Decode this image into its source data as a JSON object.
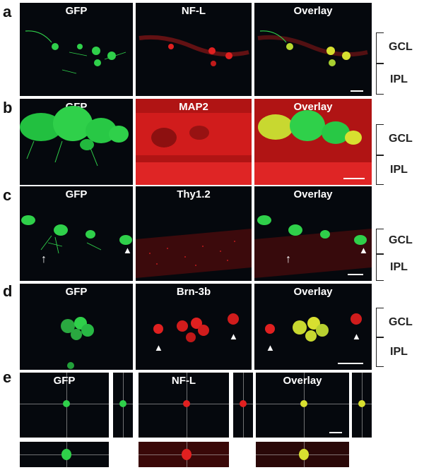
{
  "rows": [
    {
      "letter": "a",
      "labels": [
        "GFP",
        "NF-L",
        "Overlay"
      ]
    },
    {
      "letter": "b",
      "labels": [
        "GFP",
        "MAP2",
        "Overlay"
      ]
    },
    {
      "letter": "c",
      "labels": [
        "GFP",
        "Thy1.2",
        "Overlay"
      ]
    },
    {
      "letter": "d",
      "labels": [
        "GFP",
        "Brn-3b",
        "Overlay"
      ]
    },
    {
      "letter": "e",
      "labels": [
        "GFP",
        "NF-L",
        "Overlay"
      ]
    }
  ],
  "layers": {
    "gcl": "GCL",
    "ipl": "IPL"
  },
  "colors": {
    "green": "#2fd04a",
    "red": "#e02020",
    "yellow": "#d8e030",
    "background": "#05080d"
  }
}
